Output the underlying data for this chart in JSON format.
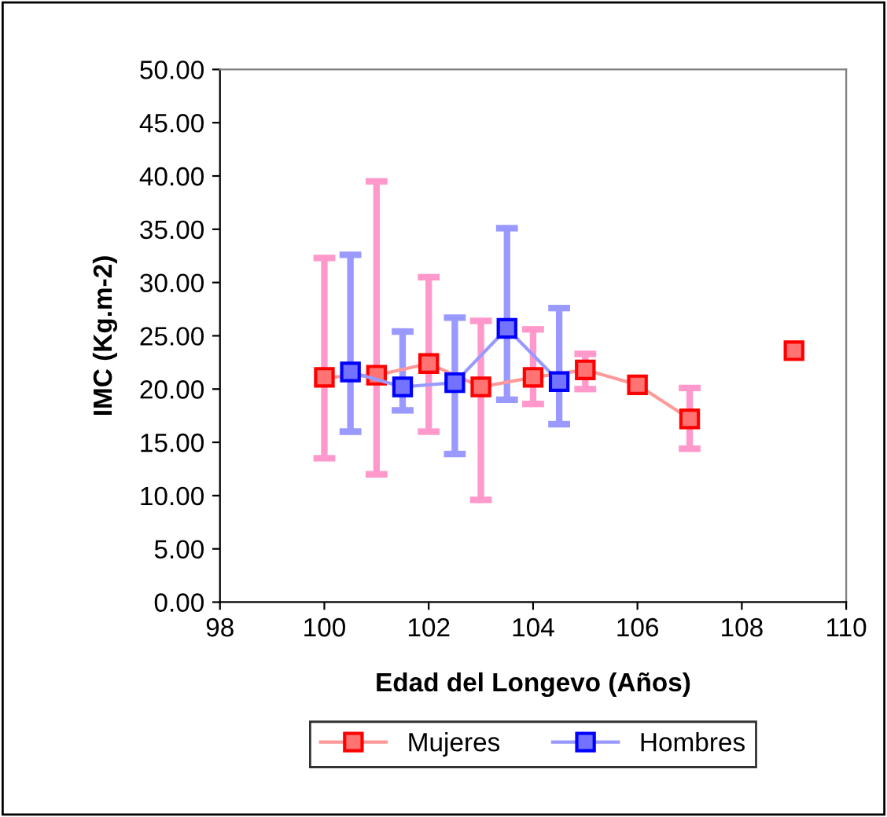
{
  "chart_data": {
    "type": "line",
    "xlabel": "Edad del Longevo (Años)",
    "ylabel": "IMC (Kg.m-2)",
    "xlim": [
      98,
      110
    ],
    "xticks": [
      98,
      100,
      102,
      104,
      106,
      108,
      110
    ],
    "ylim": [
      0,
      50
    ],
    "yticks": [
      {
        "value": 0,
        "label": "0.00"
      },
      {
        "value": 5,
        "label": "5.00"
      },
      {
        "value": 10,
        "label": "10.00"
      },
      {
        "value": 15,
        "label": "15.00"
      },
      {
        "value": 20,
        "label": "20.00"
      },
      {
        "value": 25,
        "label": "25.00"
      },
      {
        "value": 30,
        "label": "30.00"
      },
      {
        "value": 35,
        "label": "35.00"
      },
      {
        "value": 40,
        "label": "40.00"
      },
      {
        "value": 45,
        "label": "45.00"
      },
      {
        "value": 50,
        "label": "50.00"
      }
    ],
    "marker": "square",
    "line_style": "solid",
    "grid": false,
    "legend": "bottom",
    "series": [
      {
        "name": "Mujeres",
        "color": "#ff0000",
        "x": [
          100,
          101,
          102,
          103,
          104,
          105,
          106,
          107,
          108,
          109
        ],
        "values": [
          21.1,
          21.3,
          22.4,
          20.2,
          21.1,
          21.8,
          20.4,
          17.2,
          null,
          23.6
        ],
        "errors": [
          [
            13.5,
            32.3
          ],
          [
            12.0,
            39.5
          ],
          [
            16.0,
            30.5
          ],
          [
            9.6,
            26.4
          ],
          [
            18.6,
            25.6
          ],
          [
            20.0,
            23.3
          ],
          null,
          [
            14.4,
            20.1
          ],
          null,
          null
        ]
      },
      {
        "name": "Hombres",
        "color": "#0000ff",
        "x": [
          100.5,
          101.5,
          102.5,
          103.5,
          104.5
        ],
        "values": [
          21.6,
          20.2,
          20.6,
          25.7,
          20.7
        ],
        "errors": [
          [
            16.0,
            32.6
          ],
          [
            18.0,
            25.4
          ],
          [
            13.9,
            26.7
          ],
          [
            19.0,
            35.1
          ],
          [
            16.7,
            27.6
          ]
        ]
      }
    ]
  }
}
